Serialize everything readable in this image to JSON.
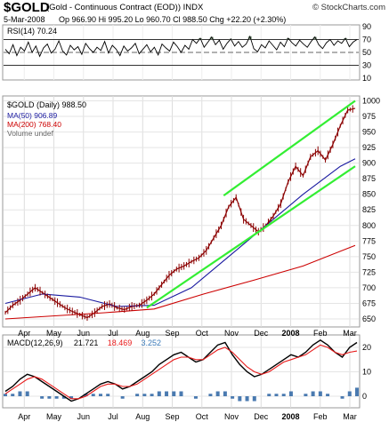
{
  "header": {
    "symbol": "$GOLD",
    "full_name": "(Gold - Continuous Contract (EOD))",
    "exchange": "INDX",
    "watermark": "© StockCharts.com",
    "date": "5-Mar-2008",
    "open": "Op 966.90",
    "high": "Hi 995.20",
    "low": "Lo 960.70",
    "close": "Cl 988.50",
    "change": "Chg +22.20 (+2.30%)"
  },
  "chart_data": [
    {
      "type": "line",
      "panel": "rsi",
      "legend": "RSI(14) 70.24",
      "ylim": [
        10,
        90
      ],
      "yticks": [
        90,
        70,
        50,
        30,
        10
      ],
      "reference_lines": [
        70,
        30
      ],
      "mid_line": 50,
      "values": [
        55,
        48,
        62,
        45,
        58,
        52,
        66,
        50,
        60,
        44,
        57,
        63,
        49,
        55,
        68,
        52,
        46,
        61,
        54,
        59,
        47,
        64,
        56,
        50,
        58,
        53,
        67,
        49,
        61,
        55,
        45,
        60,
        52,
        57,
        64,
        48,
        55,
        62,
        51,
        58,
        46,
        63,
        57,
        52,
        66,
        59,
        50,
        61,
        55,
        70,
        64,
        72,
        58,
        66,
        74,
        62,
        69,
        55,
        64,
        71,
        60,
        67,
        58,
        63,
        75,
        56,
        51,
        62,
        57,
        68,
        61,
        54,
        66,
        59,
        72,
        65,
        60,
        69,
        63,
        58,
        67,
        74,
        62,
        56,
        65,
        70,
        61,
        68,
        64,
        72,
        59,
        66,
        70
      ]
    },
    {
      "type": "line",
      "panel": "price",
      "title": "$GOLD (Daily) 988.50",
      "legend": [
        "MA(50) 906.89",
        "MA(200) 768.40",
        "Volume undef"
      ],
      "x_labels": [
        "Apr",
        "May",
        "Jun",
        "Jul",
        "Aug",
        "Sep",
        "Oct",
        "Nov",
        "Dec",
        "2008",
        "Feb",
        "Mar"
      ],
      "ylim": [
        640,
        1005
      ],
      "yticks": [
        1000,
        975,
        950,
        925,
        900,
        875,
        850,
        825,
        800,
        775,
        750,
        725,
        700,
        675,
        650
      ],
      "series": [
        {
          "name": "$GOLD",
          "color": "#8b0000",
          "values": [
            [
              0,
              660
            ],
            [
              3,
              672
            ],
            [
              6,
              680
            ],
            [
              9,
              690
            ],
            [
              12,
              700
            ],
            [
              15,
              692
            ],
            [
              18,
              684
            ],
            [
              21,
              676
            ],
            [
              24,
              668
            ],
            [
              27,
              662
            ],
            [
              30,
              657
            ],
            [
              33,
              652
            ],
            [
              36,
              660
            ],
            [
              39,
              670
            ],
            [
              42,
              674
            ],
            [
              45,
              668
            ],
            [
              48,
              665
            ],
            [
              51,
              670
            ],
            [
              54,
              672
            ],
            [
              57,
              680
            ],
            [
              60,
              690
            ],
            [
              63,
              705
            ],
            [
              66,
              720
            ],
            [
              69,
              730
            ],
            [
              72,
              735
            ],
            [
              75,
              742
            ],
            [
              78,
              748
            ],
            [
              81,
              760
            ],
            [
              84,
              780
            ],
            [
              87,
              800
            ],
            [
              90,
              830
            ],
            [
              93,
              845
            ],
            [
              96,
              810
            ],
            [
              99,
              800
            ],
            [
              102,
              790
            ],
            [
              105,
              800
            ],
            [
              108,
              815
            ],
            [
              111,
              835
            ],
            [
              114,
              870
            ],
            [
              117,
              895
            ],
            [
              120,
              880
            ],
            [
              123,
              910
            ],
            [
              126,
              920
            ],
            [
              129,
              905
            ],
            [
              132,
              930
            ],
            [
              135,
              960
            ],
            [
              138,
              985
            ],
            [
              141,
              988
            ]
          ]
        },
        {
          "name": "MA(50)",
          "color": "#1a1aa0",
          "values": [
            [
              0,
              675
            ],
            [
              15,
              690
            ],
            [
              30,
              685
            ],
            [
              45,
              670
            ],
            [
              60,
              672
            ],
            [
              75,
              700
            ],
            [
              90,
              750
            ],
            [
              105,
              800
            ],
            [
              120,
              850
            ],
            [
              135,
              895
            ],
            [
              141,
              907
            ]
          ]
        },
        {
          "name": "MA(200)",
          "color": "#cc0000",
          "values": [
            [
              0,
              650
            ],
            [
              20,
              655
            ],
            [
              40,
              660
            ],
            [
              60,
              666
            ],
            [
              80,
              690
            ],
            [
              100,
              712
            ],
            [
              120,
              735
            ],
            [
              141,
              768
            ]
          ]
        }
      ],
      "channel_lines": [
        {
          "color": "#33ee33",
          "from": [
            57,
            668
          ],
          "to": [
            141,
            895
          ]
        },
        {
          "color": "#33ee33",
          "from": [
            88,
            848
          ],
          "to": [
            141,
            1000
          ]
        }
      ]
    },
    {
      "type": "line",
      "panel": "macd",
      "legend": [
        "MACD(12,26,9)",
        "21.721",
        "18.469",
        "3.252"
      ],
      "ylim": [
        -4,
        24
      ],
      "yticks": [
        20,
        10,
        0
      ],
      "series": [
        {
          "name": "MACD",
          "color": "#000",
          "values": [
            2,
            4,
            7,
            9,
            8,
            6,
            4,
            2,
            0,
            -2,
            -1,
            1,
            3,
            5,
            6,
            5,
            3,
            4,
            6,
            8,
            10,
            13,
            15,
            17,
            18,
            16,
            14,
            15,
            18,
            21,
            22,
            17,
            13,
            10,
            8,
            9,
            11,
            13,
            15,
            17,
            16,
            18,
            21,
            23,
            21,
            18,
            16,
            20,
            22
          ]
        },
        {
          "name": "Signal",
          "color": "#e81a1a",
          "values": [
            1,
            3,
            5,
            7,
            8,
            7,
            5,
            3,
            1,
            -1,
            -1,
            0,
            2,
            4,
            5,
            5,
            4,
            4,
            5,
            7,
            9,
            11,
            13,
            15,
            16,
            16,
            15,
            15,
            17,
            19,
            20,
            18,
            15,
            12,
            10,
            9,
            10,
            12,
            14,
            15,
            16,
            17,
            19,
            21,
            20,
            18,
            17,
            18,
            18.5
          ]
        }
      ]
    }
  ]
}
